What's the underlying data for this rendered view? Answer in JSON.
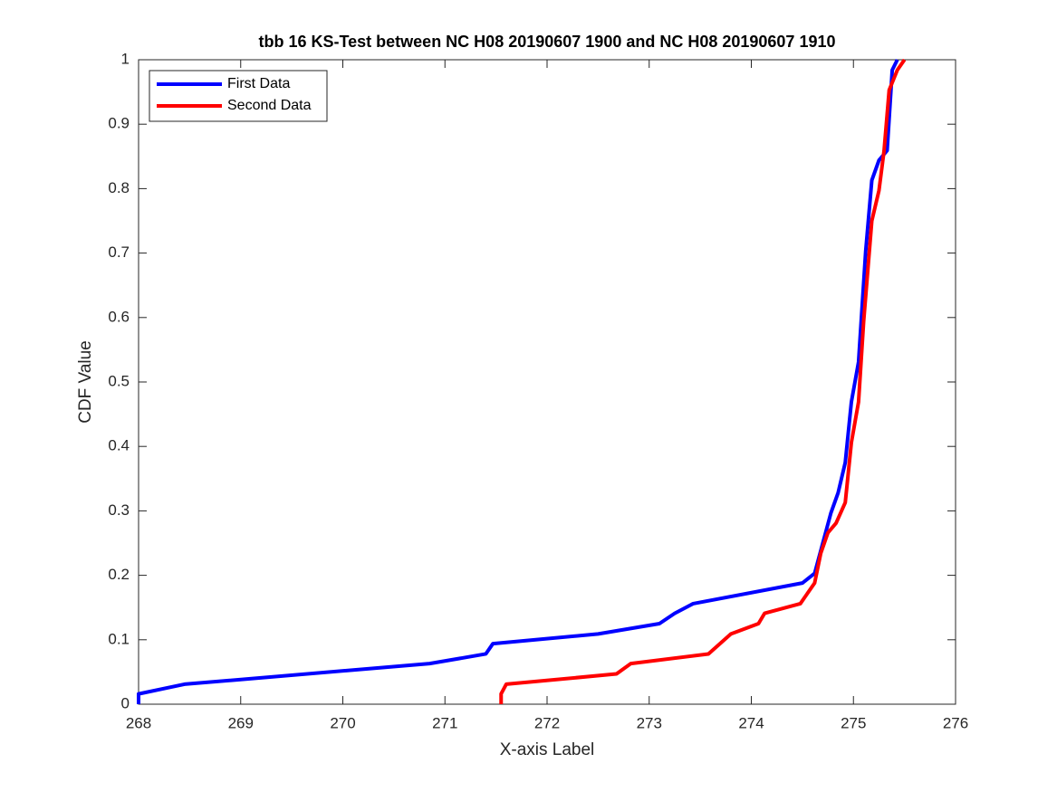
{
  "chart_data": {
    "type": "line",
    "title": "tbb 16 KS-Test between NC H08 20190607 1900 and NC H08 20190607 1910",
    "x_label": "X-axis Label",
    "y_label": "CDF Value",
    "xlim": [
      268,
      276
    ],
    "xticks": [
      268,
      269,
      270,
      271,
      272,
      273,
      274,
      275,
      276
    ],
    "ylim": [
      0,
      1
    ],
    "yticks": [
      0,
      0.1,
      0.2,
      0.3,
      0.4,
      0.5,
      0.6,
      0.7,
      0.8,
      0.9,
      1
    ],
    "legend": "northwest",
    "series": [
      {
        "name": "First Data",
        "color": "#0000ff",
        "x": [
          268.0,
          268.0,
          268.45,
          270.85,
          271.4,
          271.47,
          272.5,
          273.1,
          273.25,
          273.43,
          274.5,
          274.62,
          274.7,
          274.78,
          274.85,
          274.92,
          274.98,
          275.05,
          275.12,
          275.18,
          275.25,
          275.33,
          275.38,
          275.43
        ],
        "values": [
          0,
          0.016,
          0.031,
          0.063,
          0.078,
          0.094,
          0.109,
          0.125,
          0.141,
          0.156,
          0.188,
          0.203,
          0.25,
          0.297,
          0.328,
          0.375,
          0.469,
          0.531,
          0.703,
          0.813,
          0.844,
          0.859,
          0.984,
          1.0
        ]
      },
      {
        "name": "Second Data",
        "color": "#ff0000",
        "x": [
          271.55,
          271.55,
          271.6,
          272.68,
          272.82,
          273.58,
          273.8,
          274.07,
          274.13,
          274.48,
          274.62,
          274.68,
          274.75,
          274.83,
          274.92,
          274.98,
          275.05,
          275.1,
          275.18,
          275.25,
          275.3,
          275.35,
          275.43,
          275.5
        ],
        "values": [
          0,
          0.016,
          0.031,
          0.047,
          0.063,
          0.078,
          0.109,
          0.125,
          0.141,
          0.156,
          0.188,
          0.234,
          0.266,
          0.281,
          0.313,
          0.406,
          0.469,
          0.594,
          0.75,
          0.797,
          0.859,
          0.953,
          0.984,
          1.0
        ]
      }
    ]
  }
}
